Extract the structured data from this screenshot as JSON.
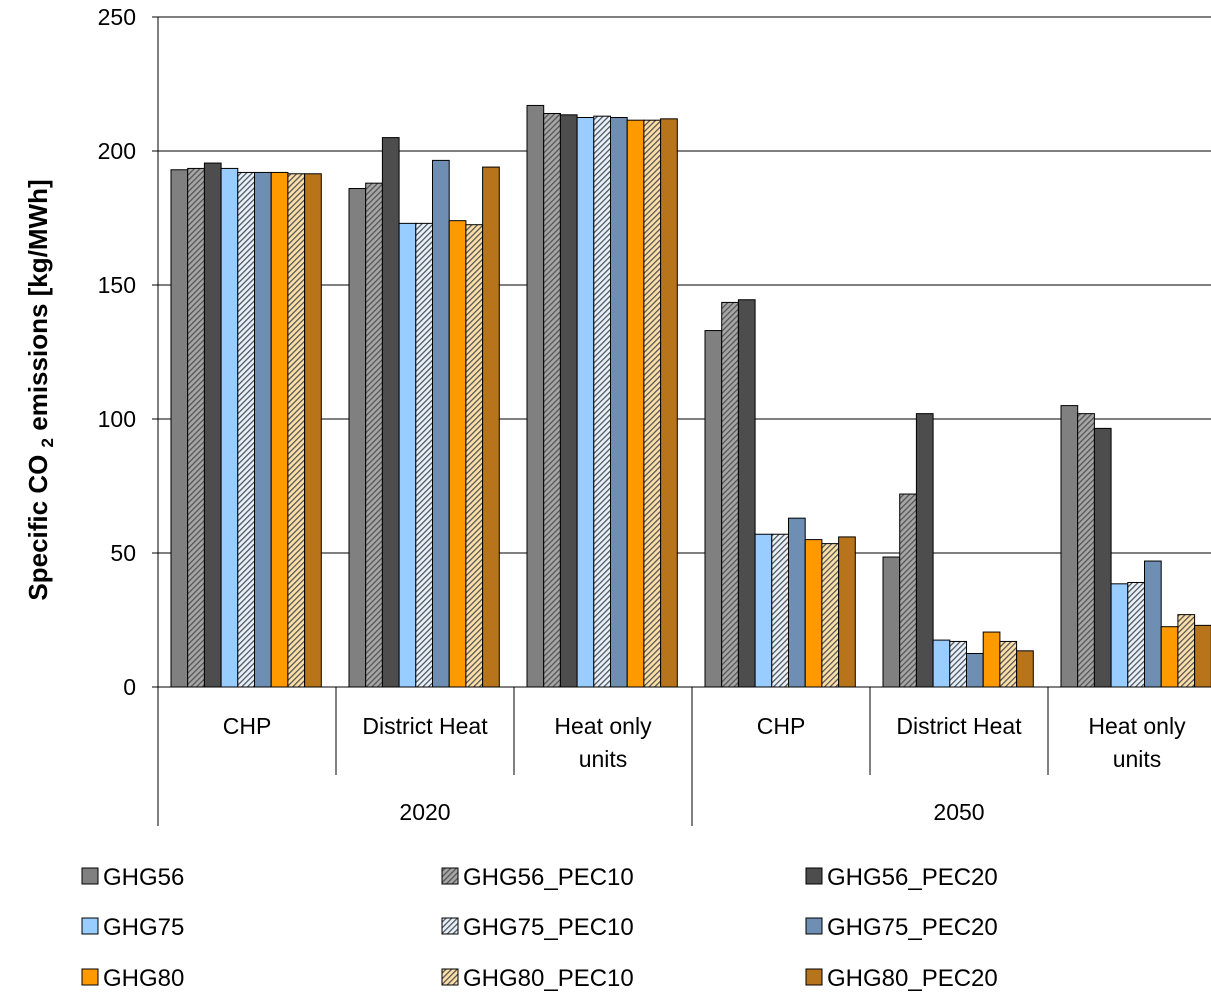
{
  "chart_data": {
    "type": "bar",
    "ylabel_parts": [
      "Specific CO ",
      "2",
      " emissions [kg/MWh]"
    ],
    "ylim": [
      0,
      250
    ],
    "yticks": [
      0,
      50,
      100,
      150,
      200,
      250
    ],
    "grid": true,
    "legend_position": "bottom",
    "groups": [
      {
        "name": "2020",
        "categories": [
          [
            "CHP"
          ],
          [
            "District Heat"
          ],
          [
            "Heat only",
            "units"
          ]
        ]
      },
      {
        "name": "2050",
        "categories": [
          [
            "CHP"
          ],
          [
            "District Heat"
          ],
          [
            "Heat only",
            "units"
          ]
        ]
      }
    ],
    "series": [
      {
        "name": "GHG56",
        "color": "#808080",
        "pattern": "solid",
        "values": [
          193,
          186,
          217,
          133,
          48.5,
          105
        ]
      },
      {
        "name": "GHG56_PEC10",
        "color": "#a6a6a6",
        "pattern": "diagonal",
        "values": [
          193.5,
          188,
          214,
          143.5,
          72,
          102
        ]
      },
      {
        "name": "GHG56_PEC20",
        "color": "#4d4d4d",
        "pattern": "solid",
        "values": [
          195.5,
          205,
          213.5,
          144.5,
          102,
          96.5
        ]
      },
      {
        "name": "GHG75",
        "color": "#99ccff",
        "pattern": "solid",
        "values": [
          193.5,
          173,
          212.5,
          57,
          17.5,
          38.5
        ]
      },
      {
        "name": "GHG75_PEC10",
        "color": "#e6f2ff",
        "pattern": "diagonal",
        "values": [
          192,
          173,
          213,
          57,
          17,
          39
        ]
      },
      {
        "name": "GHG75_PEC20",
        "color": "#6e8fb3",
        "pattern": "solid",
        "values": [
          192,
          196.5,
          212.5,
          63,
          12.5,
          47
        ]
      },
      {
        "name": "GHG80",
        "color": "#ff9900",
        "pattern": "solid",
        "values": [
          192,
          174,
          211.5,
          55,
          20.5,
          22.5
        ]
      },
      {
        "name": "GHG80_PEC10",
        "color": "#ffe1a8",
        "pattern": "diagonal",
        "values": [
          191.5,
          172.5,
          211.5,
          53.5,
          17,
          27
        ]
      },
      {
        "name": "GHG80_PEC20",
        "color": "#b8741a",
        "pattern": "solid",
        "values": [
          191.5,
          194,
          212,
          56,
          13.5,
          23
        ]
      }
    ]
  }
}
